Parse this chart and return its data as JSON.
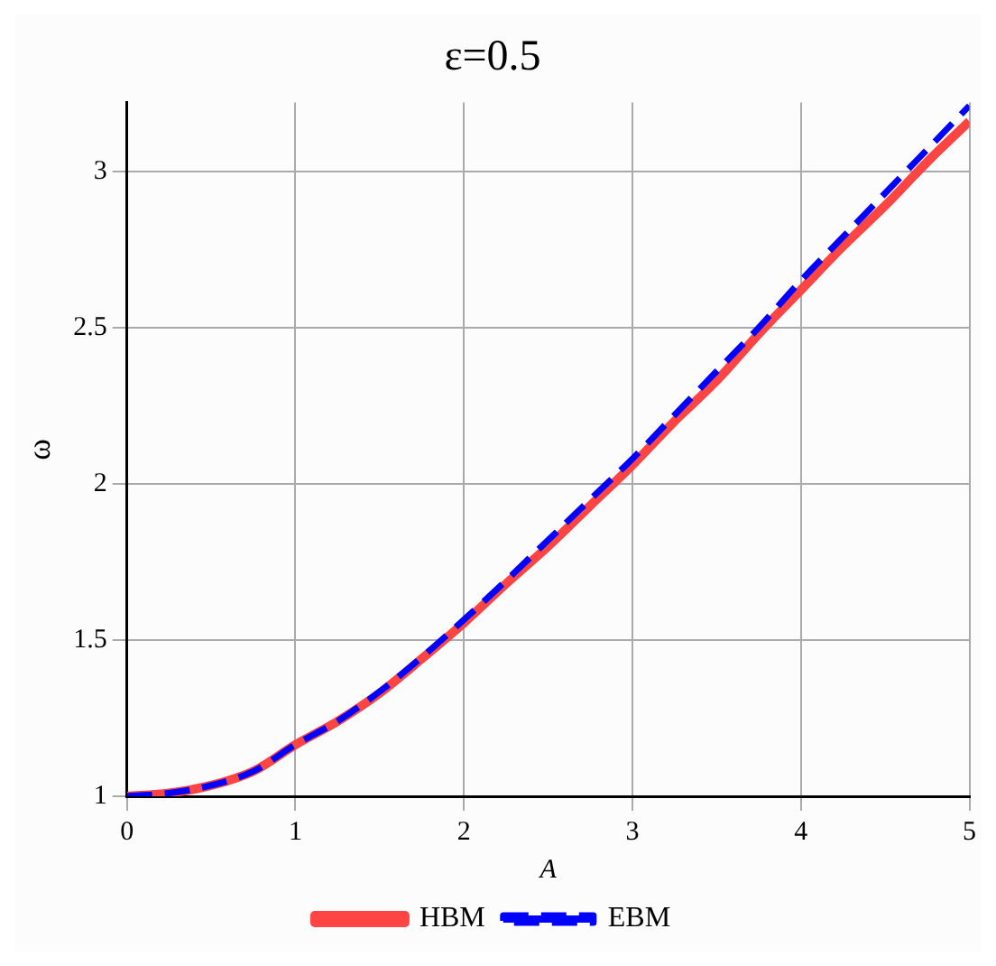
{
  "chart_data": {
    "type": "line",
    "title": "ε=0.5",
    "xlabel": "A",
    "ylabel": "ω",
    "x": [
      0,
      0.25,
      0.5,
      0.75,
      1,
      1.25,
      1.5,
      1.75,
      2,
      2.25,
      2.5,
      2.75,
      3,
      3.25,
      3.5,
      3.75,
      4,
      4.25,
      4.5,
      4.75,
      5
    ],
    "series": [
      {
        "name": "HBM",
        "color": "#ff4444",
        "line_style": "solid",
        "values": [
          1.0,
          1.01,
          1.035,
          1.08,
          1.165,
          1.24,
          1.33,
          1.44,
          1.555,
          1.68,
          1.8,
          1.93,
          2.06,
          2.2,
          2.33,
          2.48,
          2.62,
          2.76,
          2.89,
          3.03,
          3.16
        ]
      },
      {
        "name": "EBM",
        "color": "#0000ff",
        "line_style": "dashed",
        "values": [
          1.0,
          1.01,
          1.035,
          1.08,
          1.165,
          1.24,
          1.335,
          1.445,
          1.565,
          1.69,
          1.82,
          1.95,
          2.08,
          2.22,
          2.36,
          2.5,
          2.65,
          2.79,
          2.93,
          3.07,
          3.21
        ]
      }
    ],
    "xlim": [
      0,
      5
    ],
    "xticks": [
      0,
      1,
      2,
      3,
      4,
      5
    ],
    "ylim": [
      1,
      3.22
    ],
    "yticks": [
      1,
      1.5,
      2,
      2.5,
      3
    ],
    "grid": true,
    "legend": "bottom",
    "marker": "none"
  }
}
